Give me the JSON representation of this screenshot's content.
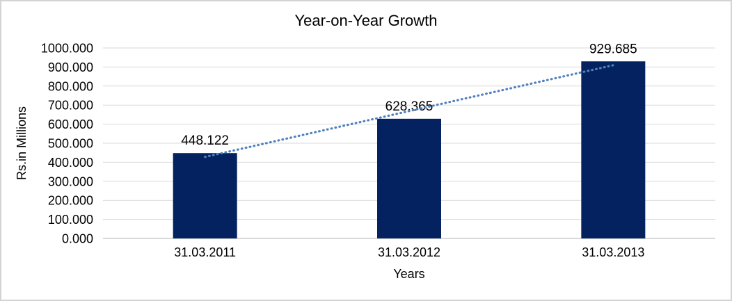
{
  "chart_data": {
    "type": "bar",
    "title": "Year-on-Year Growth",
    "categories": [
      "31.03.2011",
      "31.03.2012",
      "31.03.2013"
    ],
    "values": [
      448.122,
      628.365,
      929.685
    ],
    "data_labels": [
      "448.122",
      "628.365",
      "929.685"
    ],
    "xlabel": "Years",
    "ylabel": "Rs.in Millions",
    "ylim": [
      0,
      1000
    ],
    "ytick_step": 100,
    "ytick_labels": [
      "0.000",
      "100.000",
      "200.000",
      "300.000",
      "400.000",
      "500.000",
      "600.000",
      "700.000",
      "800.000",
      "900.000",
      "1000.000"
    ],
    "grid": true,
    "legend": "none",
    "colors": {
      "bar": "#052260",
      "grid": "#d9d9d9",
      "axis_line": "#c0c0c0",
      "trendline": "#4f81bd",
      "text": "#000000",
      "frame_border": "#d3d3d3",
      "background": "#ffffff"
    },
    "trendline": {
      "style": "dotted",
      "fit": "linear"
    }
  }
}
